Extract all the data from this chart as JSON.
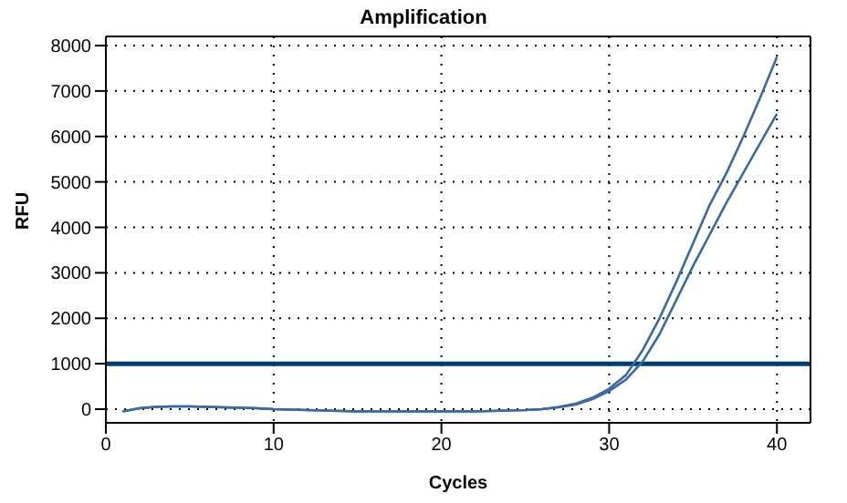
{
  "chart_data": {
    "type": "line",
    "title": "Amplification",
    "xlabel": "Cycles",
    "ylabel": "RFU",
    "x": [
      1,
      2,
      3,
      4,
      5,
      6,
      7,
      8,
      9,
      10,
      11,
      12,
      13,
      14,
      15,
      16,
      17,
      18,
      19,
      20,
      21,
      22,
      23,
      24,
      25,
      26,
      27,
      28,
      29,
      30,
      31,
      32,
      33,
      34,
      35,
      36,
      37,
      38,
      39,
      40
    ],
    "series": [
      {
        "color": "#3a6aa0",
        "values": [
          -50,
          20,
          50,
          60,
          60,
          50,
          40,
          30,
          20,
          0,
          -10,
          -20,
          -30,
          -40,
          -50,
          -50,
          -50,
          -50,
          -50,
          -50,
          -50,
          -50,
          -40,
          -30,
          -20,
          0,
          50,
          120,
          250,
          450,
          750,
          1300,
          2000,
          2800,
          3650,
          4500,
          5200,
          6000,
          6850,
          7750
        ]
      },
      {
        "color": "#3a6aa0",
        "values": [
          -50,
          20,
          50,
          60,
          60,
          50,
          40,
          30,
          20,
          0,
          -10,
          -20,
          -30,
          -40,
          -50,
          -50,
          -50,
          -50,
          -50,
          -50,
          -50,
          -50,
          -40,
          -30,
          -20,
          0,
          40,
          100,
          220,
          400,
          650,
          1050,
          1650,
          2400,
          3150,
          3850,
          4550,
          5200,
          5850,
          6500
        ]
      }
    ],
    "xlim": [
      0,
      42
    ],
    "xticks": [
      0,
      10,
      20,
      30,
      40
    ],
    "ylim": [
      -300,
      8200
    ],
    "yticks": [
      0,
      1000,
      2000,
      3000,
      4000,
      5000,
      6000,
      7000,
      8000
    ],
    "grid": true,
    "legend": false,
    "marker": "none",
    "line_style": "solid",
    "ref_lines": [
      {
        "axis": "y",
        "value": 1000,
        "color": "#003d73"
      }
    ]
  }
}
